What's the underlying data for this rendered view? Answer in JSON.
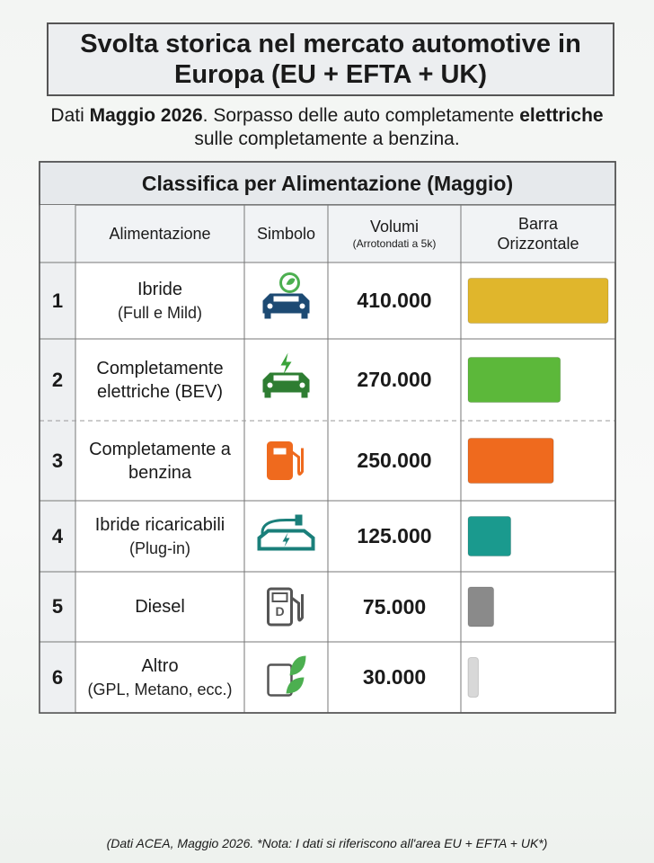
{
  "header": {
    "title": "Svolta storica nel mercato automotive in Europa (EU + EFTA + UK)",
    "subtitle": [
      "Dati ",
      "Maggio 2026",
      ". Sorpasso delle auto completamente ",
      "elettriche",
      " sulle completamente a benzina."
    ]
  },
  "table": {
    "title": "Classifica per Alimentazione (Maggio)",
    "columns": [
      "Alimentazione",
      "Simbolo",
      "Volumi",
      "(Arrotondati a 5k)",
      "Barra Orizzontale"
    ],
    "rows": [
      {
        "rank": 1,
        "name": "Ibride",
        "detail": "(Full e Mild)",
        "volume": {
          "value": 410000,
          "label": "410.000"
        },
        "color": "#e0b62c"
      },
      {
        "rank": 2,
        "name": "Completamente elettriche (BEV)",
        "volume": {
          "value": 270000,
          "label": "270.000"
        },
        "color": "#5cb83a"
      },
      {
        "rank": 3,
        "name": "Completamente a benzina",
        "volume": {
          "value": 250000,
          "label": "250.000"
        },
        "color": "#ef6a1e"
      },
      {
        "rank": 4,
        "name": "Ibride ricaricabili",
        "detail": "(Plug-in)",
        "volume": {
          "value": 125000,
          "label": "125.000"
        },
        "color": "#1a9a8e"
      },
      {
        "rank": 5,
        "name": "Diesel",
        "volume": {
          "value": 75000,
          "label": "75.000"
        },
        "color": "#8a8a8a"
      },
      {
        "rank": 6,
        "name": "Altro",
        "detail": "(GPL, Metano, ecc.)",
        "volume": {
          "value": 30000,
          "label": "30.000"
        },
        "color": "#d8d8d8"
      }
    ]
  },
  "footer": "(Dati ACEA, Maggio 2026. *Nota: I dati si riferiscono all'area EU + EFTA + UK*)"
}
